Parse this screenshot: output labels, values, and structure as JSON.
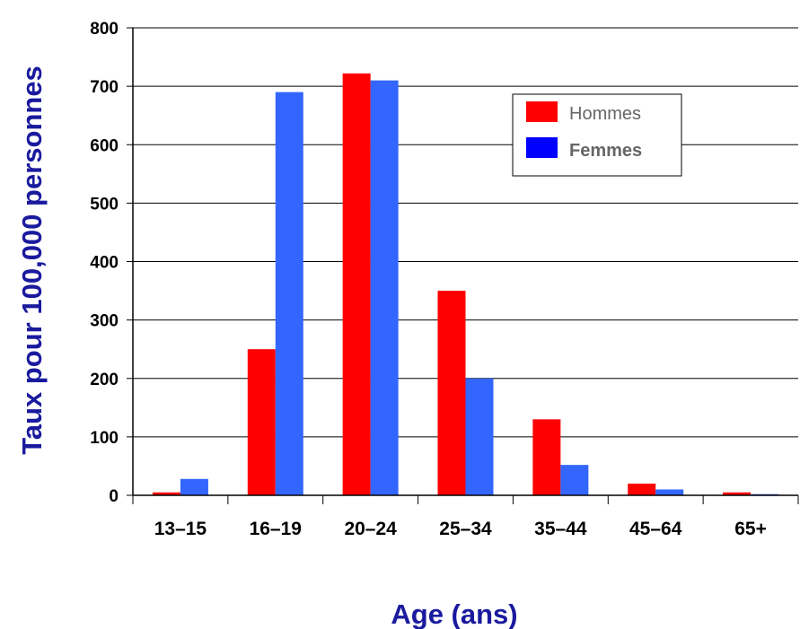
{
  "chart_data": {
    "type": "bar",
    "categories": [
      "13–15",
      "16–19",
      "20–24",
      "25–34",
      "35–44",
      "45–64",
      "65+"
    ],
    "series": [
      {
        "name": "Hommes",
        "values": [
          5,
          250,
          722,
          350,
          130,
          20,
          5
        ],
        "color": "#ff0000"
      },
      {
        "name": "Femmes",
        "values": [
          28,
          690,
          710,
          200,
          52,
          10,
          2
        ],
        "color": "#3366ff"
      }
    ],
    "xlabel": "Age (ans)",
    "ylabel": "Taux pour 100,000 personnes",
    "ylim": [
      0,
      800
    ],
    "yticks": [
      "0",
      "100",
      "200",
      "300",
      "400",
      "500",
      "600",
      "700",
      "800"
    ],
    "grid": true,
    "legend_position": "top-right"
  }
}
